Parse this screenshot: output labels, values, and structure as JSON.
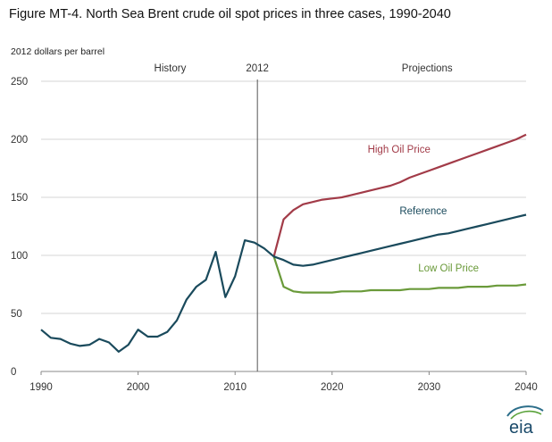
{
  "title": "Figure MT-4. North Sea Brent crude oil spot prices in three cases, 1990-2040",
  "units": "2012 dollars per barrel",
  "logo_text": "eia",
  "chart_data": {
    "type": "line",
    "title": "Figure MT-4. North Sea Brent crude oil spot prices in three cases, 1990-2040",
    "ylabel": "2012 dollars per barrel",
    "xlim": [
      1990,
      2040
    ],
    "ylim": [
      0,
      250
    ],
    "xticks": [
      1990,
      2000,
      2010,
      2020,
      2030,
      2040
    ],
    "yticks": [
      0,
      50,
      100,
      150,
      200,
      250
    ],
    "grid": true,
    "divider": {
      "x": 2012.3,
      "label": "2012"
    },
    "regions": {
      "history": "History",
      "projections": "Projections"
    },
    "series": [
      {
        "name": "History",
        "color": "#1a4a5c",
        "x": [
          1990,
          1991,
          1992,
          1993,
          1994,
          1995,
          1996,
          1997,
          1998,
          1999,
          2000,
          2001,
          2002,
          2003,
          2004,
          2005,
          2006,
          2007,
          2008,
          2009,
          2010,
          2011,
          2012,
          2013,
          2014
        ],
        "values": [
          36,
          29,
          28,
          24,
          22,
          23,
          28,
          25,
          17,
          23,
          36,
          30,
          30,
          34,
          44,
          62,
          73,
          79,
          103,
          64,
          82,
          113,
          111,
          106,
          99
        ]
      },
      {
        "name": "Reference",
        "color": "#1a4a5c",
        "x": [
          2014,
          2015,
          2016,
          2017,
          2018,
          2019,
          2020,
          2021,
          2022,
          2023,
          2024,
          2025,
          2026,
          2027,
          2028,
          2029,
          2030,
          2031,
          2032,
          2033,
          2034,
          2035,
          2036,
          2037,
          2038,
          2039,
          2040
        ],
        "values": [
          99,
          96,
          92,
          91,
          92,
          94,
          96,
          98,
          100,
          102,
          104,
          106,
          108,
          110,
          112,
          114,
          116,
          118,
          119,
          121,
          123,
          125,
          127,
          129,
          131,
          133,
          135
        ]
      },
      {
        "name": "High Oil Price",
        "color": "#a23b48",
        "x": [
          2014,
          2015,
          2016,
          2017,
          2018,
          2019,
          2020,
          2021,
          2022,
          2023,
          2024,
          2025,
          2026,
          2027,
          2028,
          2029,
          2030,
          2031,
          2032,
          2033,
          2034,
          2035,
          2036,
          2037,
          2038,
          2039,
          2040
        ],
        "values": [
          99,
          131,
          139,
          144,
          146,
          148,
          149,
          150,
          152,
          154,
          156,
          158,
          160,
          163,
          167,
          170,
          173,
          176,
          179,
          182,
          185,
          188,
          191,
          194,
          197,
          200,
          204
        ]
      },
      {
        "name": "Low Oil Price",
        "color": "#6a9a3a",
        "x": [
          2014,
          2015,
          2016,
          2017,
          2018,
          2019,
          2020,
          2021,
          2022,
          2023,
          2024,
          2025,
          2026,
          2027,
          2028,
          2029,
          2030,
          2031,
          2032,
          2033,
          2034,
          2035,
          2036,
          2037,
          2038,
          2039,
          2040
        ],
        "values": [
          99,
          73,
          69,
          68,
          68,
          68,
          68,
          69,
          69,
          69,
          70,
          70,
          70,
          70,
          71,
          71,
          71,
          72,
          72,
          72,
          73,
          73,
          73,
          74,
          74,
          74,
          75
        ]
      }
    ]
  }
}
